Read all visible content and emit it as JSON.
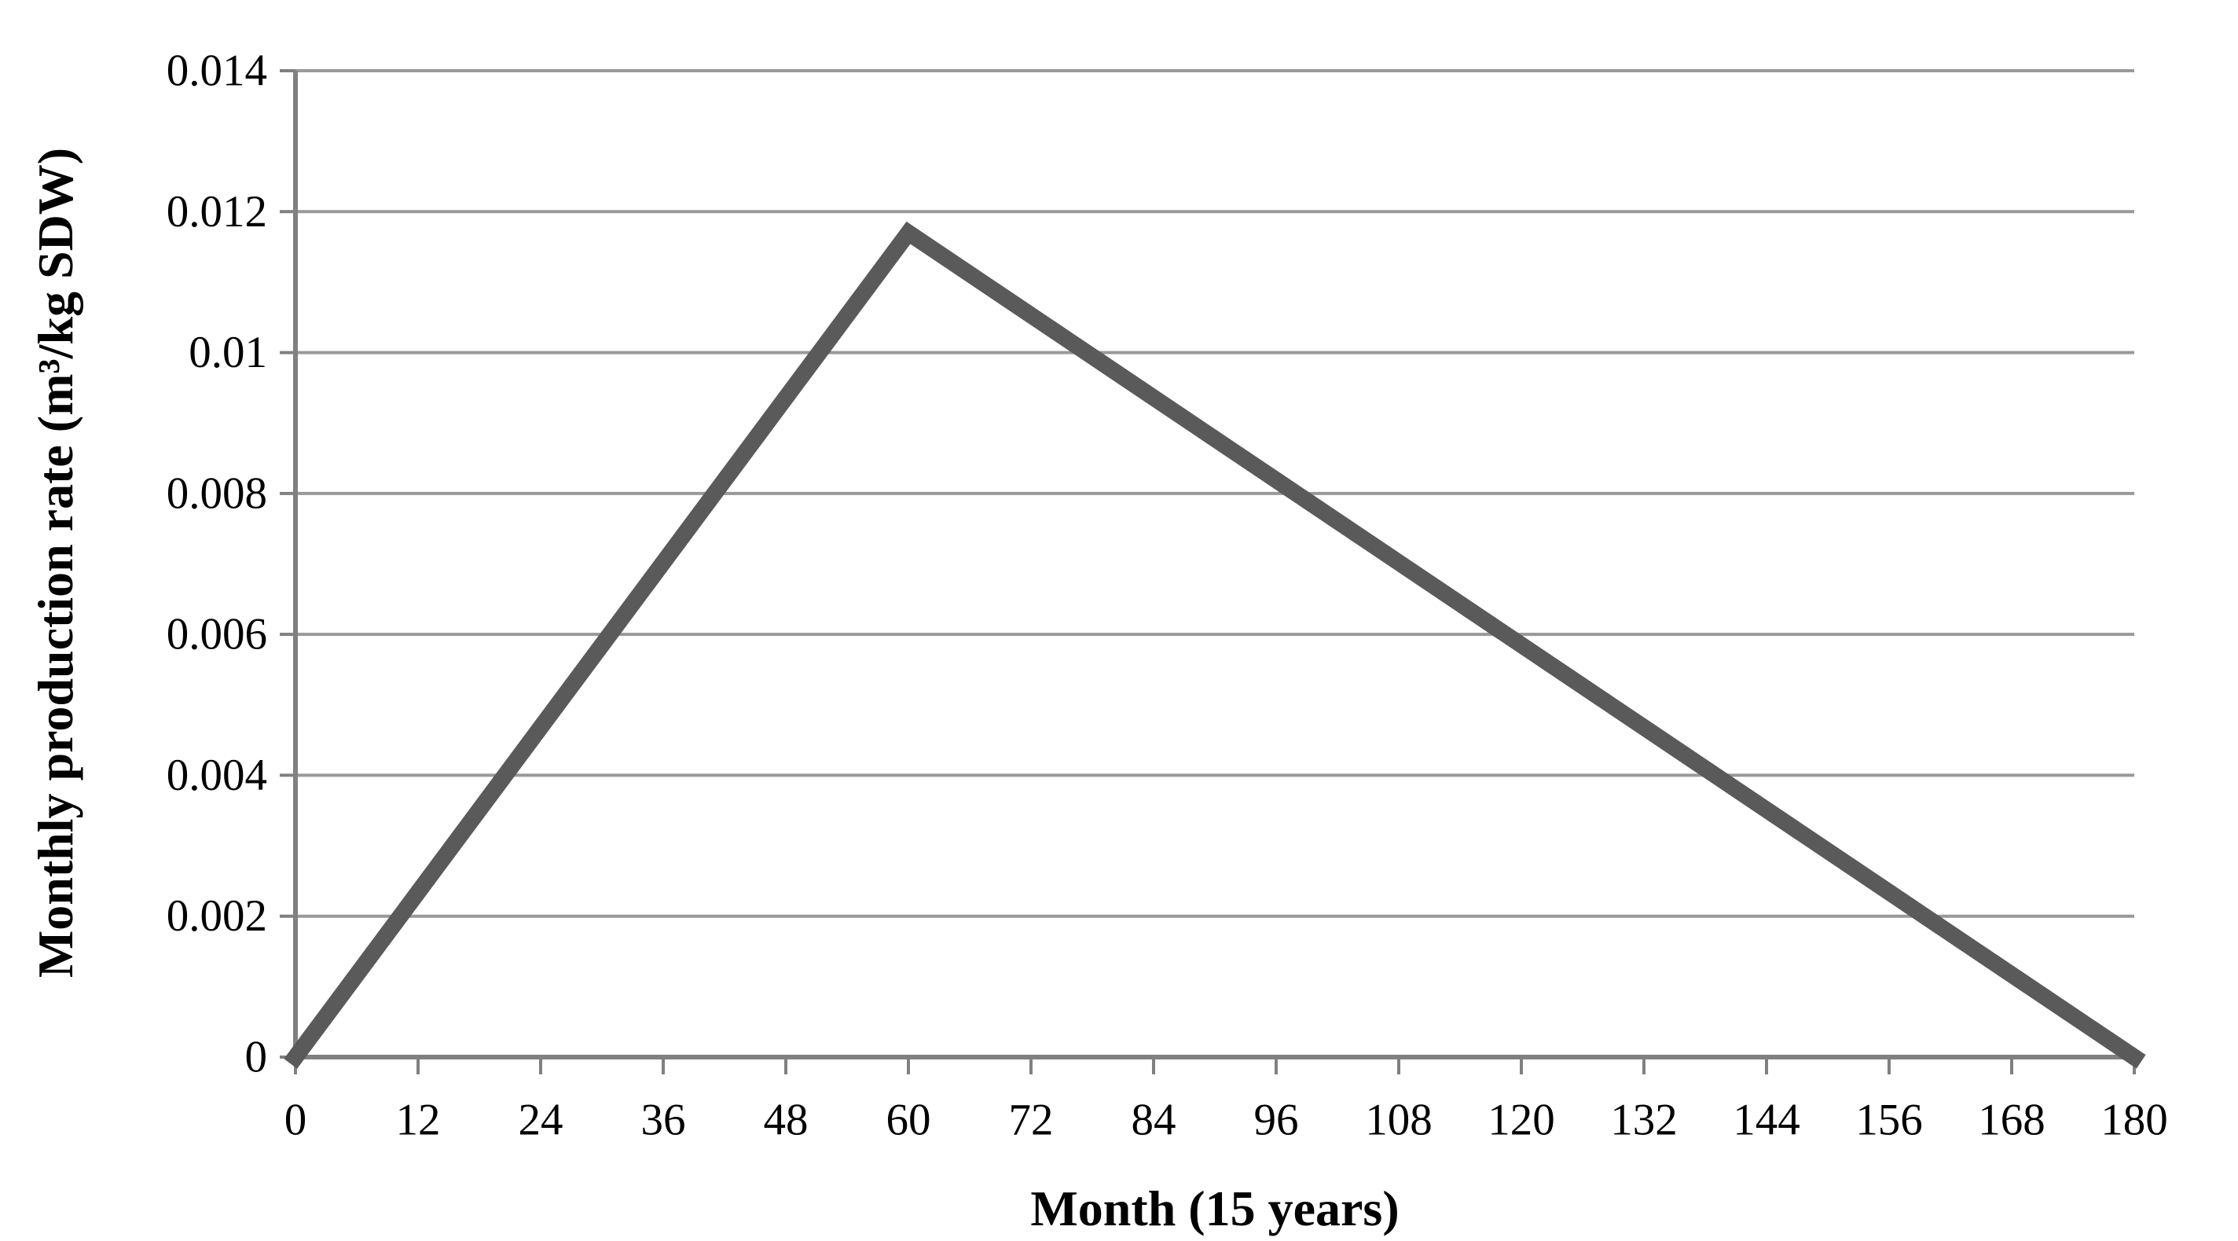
{
  "chart_data": {
    "type": "line",
    "title": "",
    "xlabel": "Month (15 years)",
    "ylabel": "Monthly production rate (m³/kg SDW)",
    "series": [
      {
        "name": "monthly-production-rate",
        "x": [
          0,
          60,
          180
        ],
        "y": [
          0,
          0.0117,
          0
        ]
      }
    ],
    "peak": {
      "month": 60,
      "value": 0.0117
    },
    "xlim": [
      0,
      180
    ],
    "ylim": [
      0,
      0.014
    ],
    "x_ticks": [
      0,
      12,
      24,
      36,
      48,
      60,
      72,
      84,
      96,
      108,
      120,
      132,
      144,
      156,
      168,
      180
    ],
    "x_tick_labels": [
      "0",
      "12",
      "24",
      "36",
      "48",
      "60",
      "72",
      "84",
      "96",
      "108",
      "120",
      "132",
      "144",
      "156",
      "168",
      "180"
    ],
    "y_ticks": [
      0,
      0.002,
      0.004,
      0.006,
      0.008,
      0.01,
      0.012,
      0.014
    ],
    "y_tick_labels": [
      "0",
      "0.002",
      "0.004",
      "0.006",
      "0.008",
      "0.01",
      "0.012",
      "0.014"
    ],
    "grid": "horizontal",
    "legend": "none",
    "colors": {
      "line": "#5a5a5a",
      "gridline": "#999999",
      "axis": "#808080",
      "text": "#000000",
      "background": "#ffffff"
    }
  }
}
